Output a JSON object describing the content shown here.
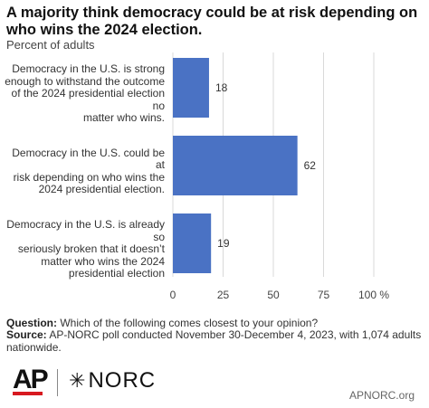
{
  "chart_data": {
    "type": "bar",
    "orientation": "horizontal",
    "title": "A majority think democracy could be at risk depending on who wins the 2024 election.",
    "subtitle": "Percent of adults",
    "categories": [
      [
        "Democracy in the U.S. is strong",
        "enough to withstand the outcome",
        "of the 2024 presidential election no",
        "matter who wins."
      ],
      [
        "Democracy in the U.S. could be at",
        "risk depending on who wins the",
        "2024 presidential election."
      ],
      [
        "Democracy in the U.S. is already so",
        "seriously broken that it doesn’t",
        "matter who wins the 2024",
        "presidential election"
      ]
    ],
    "values": [
      18,
      62,
      19
    ],
    "value_labels": [
      "18",
      "62",
      "19"
    ],
    "xlim": [
      0,
      100
    ],
    "ticks": [
      0,
      25,
      50,
      75,
      100
    ],
    "tick_labels": [
      "0",
      "25",
      "50",
      "75",
      "100 %"
    ],
    "grid": true,
    "bar_color": "#4a72c4"
  },
  "footer": {
    "question_label": "Question:",
    "question_text": " Which of the following comes closest to your opinion?",
    "source_label": "Source:",
    "source_text": " AP-NORC poll conducted November 30-December 4, 2023, with 1,074 adults nationwide."
  },
  "logos": {
    "ap": "AP",
    "norc": "NORC",
    "norc_icon": "star-burst-icon",
    "site": "APNORC.org"
  }
}
